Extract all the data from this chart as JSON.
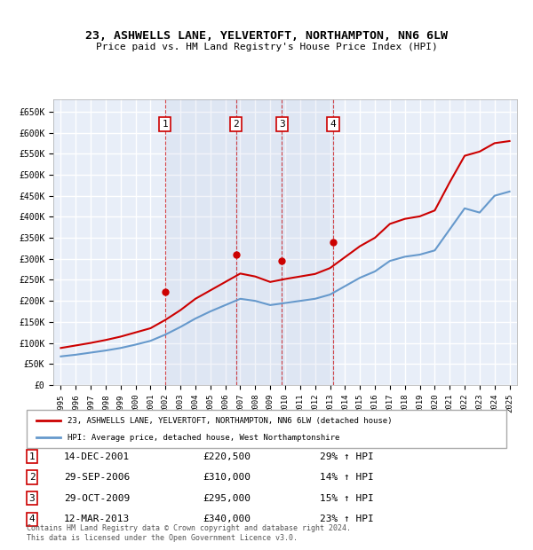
{
  "title": "23, ASHWELLS LANE, YELVERTOFT, NORTHAMPTON, NN6 6LW",
  "subtitle": "Price paid vs. HM Land Registry's House Price Index (HPI)",
  "ylabel": "",
  "ylim": [
    0,
    680000
  ],
  "yticks": [
    0,
    50000,
    100000,
    150000,
    200000,
    250000,
    300000,
    350000,
    400000,
    450000,
    500000,
    550000,
    600000,
    650000
  ],
  "ytick_labels": [
    "£0",
    "£50K",
    "£100K",
    "£150K",
    "£200K",
    "£250K",
    "£300K",
    "£350K",
    "£400K",
    "£450K",
    "£500K",
    "£550K",
    "£600K",
    "£650K"
  ],
  "background_color": "#ffffff",
  "plot_bg_color": "#e8eef8",
  "grid_color": "#ffffff",
  "red_line_color": "#cc0000",
  "blue_line_color": "#6699cc",
  "sale_marker_color": "#cc0000",
  "purchase_dates": [
    "2001-12-14",
    "2006-09-29",
    "2009-10-29",
    "2013-03-12"
  ],
  "purchase_prices": [
    220500,
    310000,
    295000,
    340000
  ],
  "purchase_labels": [
    "1",
    "2",
    "3",
    "4"
  ],
  "purchase_hpi_pct": [
    "29%",
    "14%",
    "15%",
    "23%"
  ],
  "purchase_date_str": [
    "14-DEC-2001",
    "29-SEP-2006",
    "29-OCT-2009",
    "12-MAR-2013"
  ],
  "purchase_price_str": [
    "£220,500",
    "£310,000",
    "£295,000",
    "£340,000"
  ],
  "legend_red": "23, ASHWELLS LANE, YELVERTOFT, NORTHAMPTON, NN6 6LW (detached house)",
  "legend_blue": "HPI: Average price, detached house, West Northamptonshire",
  "footer": "Contains HM Land Registry data © Crown copyright and database right 2024.\nThis data is licensed under the Open Government Licence v3.0.",
  "hpi_years": [
    1995,
    1996,
    1997,
    1998,
    1999,
    2000,
    2001,
    2002,
    2003,
    2004,
    2005,
    2006,
    2007,
    2008,
    2009,
    2010,
    2011,
    2012,
    2013,
    2014,
    2015,
    2016,
    2017,
    2018,
    2019,
    2020,
    2021,
    2022,
    2023,
    2024,
    2025
  ],
  "hpi_values": [
    68000,
    72000,
    77000,
    82000,
    88000,
    96000,
    105000,
    120000,
    138000,
    158000,
    175000,
    190000,
    205000,
    200000,
    190000,
    195000,
    200000,
    205000,
    215000,
    235000,
    255000,
    270000,
    295000,
    305000,
    310000,
    320000,
    370000,
    420000,
    410000,
    450000,
    460000
  ],
  "red_years": [
    1995,
    1996,
    1997,
    1998,
    1999,
    2000,
    2001,
    2002,
    2003,
    2004,
    2005,
    2006,
    2007,
    2008,
    2009,
    2010,
    2011,
    2012,
    2013,
    2014,
    2015,
    2016,
    2017,
    2018,
    2019,
    2020,
    2021,
    2022,
    2023,
    2024,
    2025
  ],
  "red_values": [
    88000,
    94000,
    100000,
    107000,
    115000,
    125000,
    135000,
    155000,
    178000,
    205000,
    225000,
    245000,
    265000,
    258000,
    245000,
    252000,
    258000,
    264000,
    278000,
    304000,
    330000,
    350000,
    383000,
    395000,
    401000,
    415000,
    482000,
    545000,
    555000,
    575000,
    580000
  ],
  "xlim_start": 1994.5,
  "xlim_end": 2025.5,
  "xtick_years": [
    1995,
    1996,
    1997,
    1998,
    1999,
    2000,
    2001,
    2002,
    2003,
    2004,
    2005,
    2006,
    2007,
    2008,
    2009,
    2010,
    2011,
    2012,
    2013,
    2014,
    2015,
    2016,
    2017,
    2018,
    2019,
    2020,
    2021,
    2022,
    2023,
    2024,
    2025
  ]
}
